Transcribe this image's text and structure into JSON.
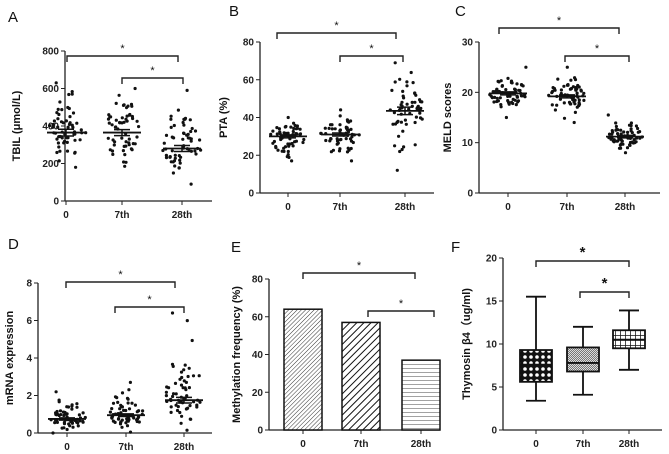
{
  "chart_data": [
    {
      "panel": "A",
      "type": "scatter",
      "ylabel": "TBIL (μmol/L)",
      "ylim": [
        0,
        800
      ],
      "yticks": [
        0,
        200,
        400,
        600,
        800
      ],
      "categories": [
        "0",
        "7th",
        "28th"
      ],
      "groups": [
        {
          "n": 58,
          "mean": 365,
          "sem": 18,
          "min": 180,
          "max": 630
        },
        {
          "n": 58,
          "mean": 365,
          "sem": 16,
          "min": 185,
          "max": 600
        },
        {
          "n": 60,
          "mean": 280,
          "sem": 16,
          "min": 90,
          "max": 590
        }
      ],
      "significance": [
        {
          "from": "0",
          "to": "28th",
          "label": "*"
        },
        {
          "from": "7th",
          "to": "28th",
          "label": "*"
        }
      ]
    },
    {
      "panel": "B",
      "type": "scatter",
      "ylabel": "PTA (%)",
      "ylim": [
        0,
        80
      ],
      "yticks": [
        0,
        20,
        40,
        60,
        80
      ],
      "categories": [
        "0",
        "7th",
        "28th"
      ],
      "groups": [
        {
          "n": 58,
          "mean": 30,
          "sem": 0.8,
          "min": 17,
          "max": 40
        },
        {
          "n": 58,
          "mean": 31,
          "sem": 0.8,
          "min": 17,
          "max": 44
        },
        {
          "n": 58,
          "mean": 43.5,
          "sem": 2,
          "min": 12,
          "max": 69
        }
      ],
      "significance": [
        {
          "from": "0",
          "to": "28th",
          "label": "*"
        },
        {
          "from": "7th",
          "to": "28th",
          "label": "*"
        }
      ]
    },
    {
      "panel": "C",
      "type": "scatter",
      "ylabel": "MELD scores",
      "ylim": [
        0,
        30
      ],
      "yticks": [
        0,
        10,
        20,
        30
      ],
      "categories": [
        "0",
        "7th",
        "28th"
      ],
      "groups": [
        {
          "n": 62,
          "mean": 19.8,
          "sem": 0.3,
          "min": 15,
          "max": 25
        },
        {
          "n": 62,
          "mean": 19.2,
          "sem": 0.3,
          "min": 14,
          "max": 25
        },
        {
          "n": 62,
          "mean": 11.2,
          "sem": 0.25,
          "min": 8,
          "max": 15.5
        }
      ],
      "significance": [
        {
          "from": "0",
          "to": "28th",
          "label": "*"
        },
        {
          "from": "7th",
          "to": "28th",
          "label": "*"
        }
      ]
    },
    {
      "panel": "D",
      "type": "scatter",
      "ylabel": "mRNA expression",
      "ylim": [
        0,
        8
      ],
      "yticks": [
        0,
        2,
        4,
        6,
        8
      ],
      "categories": [
        "0",
        "7th",
        "28th"
      ],
      "groups": [
        {
          "n": 60,
          "mean": 0.75,
          "sem": 0.06,
          "min": 0,
          "max": 2.2
        },
        {
          "n": 60,
          "mean": 0.95,
          "sem": 0.07,
          "min": 0.05,
          "max": 2.7
        },
        {
          "n": 60,
          "mean": 1.75,
          "sem": 0.15,
          "min": 0.15,
          "max": 6.4
        }
      ],
      "significance": [
        {
          "from": "0",
          "to": "28th",
          "label": "*"
        },
        {
          "from": "7th",
          "to": "28th",
          "label": "*"
        }
      ]
    },
    {
      "panel": "E",
      "type": "bar",
      "ylabel": "Methylation frequency (%)",
      "ylim": [
        0,
        80
      ],
      "yticks": [
        0,
        20,
        40,
        60,
        80
      ],
      "categories": [
        "0",
        "7th",
        "28th"
      ],
      "values": [
        64,
        57,
        37
      ],
      "patterns": [
        "fine-diagonal",
        "diagonal",
        "horizontal"
      ],
      "significance": [
        {
          "from": "0",
          "to": "28th",
          "label": "*"
        },
        {
          "from": "7th",
          "to": "28th",
          "label": "*"
        }
      ]
    },
    {
      "panel": "F",
      "type": "box",
      "ylabel": "Thymosin β4（ug/ml)",
      "ylim": [
        0,
        20
      ],
      "yticks": [
        0,
        5,
        10,
        15,
        20
      ],
      "categories": [
        "0",
        "7th",
        "28th"
      ],
      "boxes": [
        {
          "min": 3.4,
          "q1": 5.6,
          "median": 7.6,
          "q3": 9.3,
          "max": 15.5
        },
        {
          "min": 4.1,
          "q1": 6.8,
          "median": 7.8,
          "q3": 9.6,
          "max": 12
        },
        {
          "min": 7,
          "q1": 9.5,
          "median": 10.5,
          "q3": 11.6,
          "max": 13.9
        }
      ],
      "patterns": [
        "dots",
        "checker",
        "grid"
      ],
      "significance": [
        {
          "from": "0",
          "to": "28th",
          "label": "*"
        },
        {
          "from": "7th",
          "to": "28th",
          "label": "*"
        }
      ]
    }
  ]
}
